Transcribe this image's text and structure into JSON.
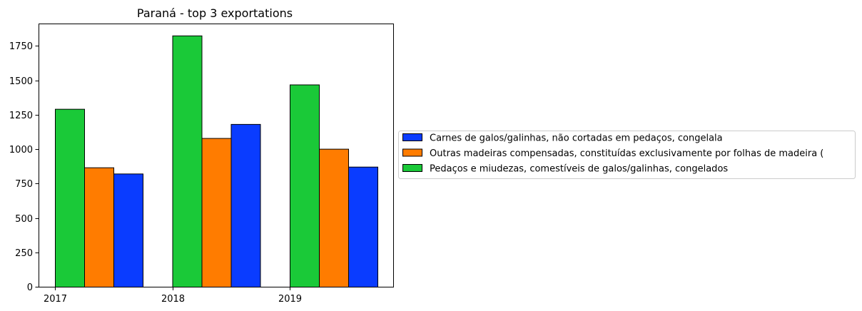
{
  "chart_data": {
    "type": "bar",
    "title": "Paraná - top 3 exportations",
    "xlabel": "",
    "ylabel": "",
    "categories": [
      "2017",
      "2018",
      "2019"
    ],
    "ylim": [
      0,
      1912
    ],
    "yticks": [
      0,
      250,
      500,
      750,
      1000,
      1250,
      1500,
      1750
    ],
    "grid": false,
    "legend_position": "right",
    "bar_order": [
      "Pedaços e miudezas, comestíveis de galos/galinhas, congelados",
      "Outras madeiras compensadas, constituídas exclusivamente por folhas de madeira (",
      "Carnes de galos/galinhas, não cortadas em pedaços, congelala"
    ],
    "series": [
      {
        "name": "Carnes de galos/galinhas, não cortadas em pedaços, congelala",
        "color": "#0a3cff",
        "values": [
          822,
          1182,
          872
        ]
      },
      {
        "name": "Outras madeiras compensadas, constituídas exclusivamente por folhas de madeira (",
        "color": "#ff7c00",
        "values": [
          867,
          1080,
          1002
        ]
      },
      {
        "name": "Pedaços e miudezas, comestíveis de galos/galinhas, congelados",
        "color": "#1ac938",
        "values": [
          1292,
          1825,
          1469
        ]
      }
    ]
  }
}
